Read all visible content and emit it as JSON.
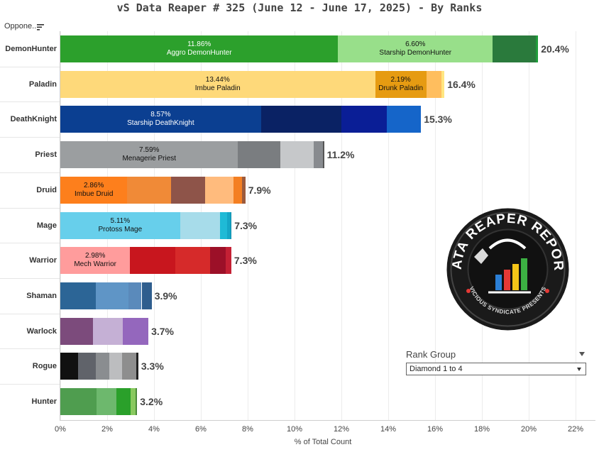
{
  "title": "vS Data Reaper #  325 (June 12 - June 17, 2025) - By Ranks",
  "row_header": "Oppone..",
  "filter": {
    "title": "Rank Group",
    "value": "Diamond 1 to 4"
  },
  "logo": {
    "text_top": "DATA REAPER REPORT",
    "text_bottom": "VICIOUS SYNDICATE PRESENTS"
  },
  "chart_data": {
    "type": "bar",
    "orientation": "horizontal",
    "stacked": true,
    "xlabel": "% of Total Count",
    "xlim": [
      0,
      22.5
    ],
    "x_ticks": [
      "0%",
      "2%",
      "4%",
      "6%",
      "8%",
      "10%",
      "12%",
      "14%",
      "16%",
      "18%",
      "20%",
      "22%"
    ],
    "grid": true,
    "rows": [
      {
        "class": "DemonHunter",
        "total_label": "20.4%",
        "segments": [
          {
            "value": 11.86,
            "pct_label": "11.86%",
            "archetype": "Aggro DemonHunter",
            "color": "#2ca02c",
            "text_color": "#ffffff"
          },
          {
            "value": 6.6,
            "pct_label": "6.60%",
            "archetype": "Starship DemonHunter",
            "color": "#98df8a",
            "text_color": "#111111"
          },
          {
            "value": 1.85,
            "color": "#2a7a3c"
          },
          {
            "value": 0.09,
            "color": "#1f9d3b"
          }
        ]
      },
      {
        "class": "Paladin",
        "total_label": "16.4%",
        "segments": [
          {
            "value": 13.44,
            "pct_label": "13.44%",
            "archetype": "Imbue Paladin",
            "color": "#fed97a",
            "text_color": "#111111"
          },
          {
            "value": 2.19,
            "pct_label": "2.19%",
            "archetype": "Drunk Paladin",
            "color": "#e69b12",
            "text_color": "#111111"
          },
          {
            "value": 0.65,
            "color": "#ffbe5e"
          },
          {
            "value": 0.12,
            "color": "#ffe680"
          }
        ]
      },
      {
        "class": "DeathKnight",
        "total_label": "15.3%",
        "segments": [
          {
            "value": 8.57,
            "pct_label": "8.57%",
            "archetype": "Starship DeathKnight",
            "color": "#0b3f91",
            "text_color": "#ffffff"
          },
          {
            "value": 3.43,
            "color": "#0a2264"
          },
          {
            "value": 1.93,
            "color": "#0a1e96"
          },
          {
            "value": 1.47,
            "color": "#1565c9"
          }
        ]
      },
      {
        "class": "Priest",
        "total_label": "11.2%",
        "segments": [
          {
            "value": 7.59,
            "pct_label": "7.59%",
            "archetype": "Menagerie Priest",
            "color": "#9b9ea0",
            "text_color": "#111111"
          },
          {
            "value": 1.8,
            "color": "#7a7d80"
          },
          {
            "value": 1.42,
            "color": "#c6c8ca"
          },
          {
            "value": 0.39,
            "color": "#888b8f"
          },
          {
            "value": 0.06,
            "color": "#555555"
          }
        ]
      },
      {
        "class": "Druid",
        "total_label": "7.9%",
        "segments": [
          {
            "value": 2.86,
            "pct_label": "2.86%",
            "archetype": "Imbue Druid",
            "color": "#fd7f1c",
            "text_color": "#111111"
          },
          {
            "value": 1.87,
            "color": "#f08a37"
          },
          {
            "value": 1.45,
            "color": "#8e5449"
          },
          {
            "value": 1.22,
            "color": "#ffbb7d"
          },
          {
            "value": 0.36,
            "color": "#f47f22"
          },
          {
            "value": 0.14,
            "color": "#9c5a3c"
          }
        ]
      },
      {
        "class": "Mage",
        "total_label": "7.3%",
        "segments": [
          {
            "value": 5.11,
            "pct_label": "5.11%",
            "archetype": "Protoss Mage",
            "color": "#67cfeb",
            "text_color": "#111111"
          },
          {
            "value": 1.7,
            "color": "#a7dcea"
          },
          {
            "value": 0.3,
            "color": "#1fbad6"
          },
          {
            "value": 0.15,
            "color": "#15a6c6"
          },
          {
            "value": 0.05,
            "color": "#0d8aa8"
          }
        ]
      },
      {
        "class": "Warrior",
        "total_label": "7.3%",
        "segments": [
          {
            "value": 2.98,
            "pct_label": "2.98%",
            "archetype": "Mech Warrior",
            "color": "#ff9c9c",
            "text_color": "#111111"
          },
          {
            "value": 1.94,
            "color": "#c8161e"
          },
          {
            "value": 1.48,
            "color": "#d62a2a"
          },
          {
            "value": 0.66,
            "color": "#9c1028"
          },
          {
            "value": 0.24,
            "color": "#c42034"
          }
        ]
      },
      {
        "class": "Shaman",
        "total_label": "3.9%",
        "segments": [
          {
            "value": 1.52,
            "color": "#2c6596"
          },
          {
            "value": 1.38,
            "color": "#5f95c6"
          },
          {
            "value": 0.57,
            "color": "#5a8abb"
          },
          {
            "value": 0.43,
            "color": "#2f5e8e"
          }
        ]
      },
      {
        "class": "Warlock",
        "total_label": "3.7%",
        "segments": [
          {
            "value": 1.4,
            "color": "#7c4b7c"
          },
          {
            "value": 1.26,
            "color": "#c5b0d5"
          },
          {
            "value": 1.1,
            "color": "#9467bd"
          }
        ]
      },
      {
        "class": "Rogue",
        "total_label": "3.3%",
        "segments": [
          {
            "value": 0.75,
            "color": "#111111"
          },
          {
            "value": 0.75,
            "color": "#60636a"
          },
          {
            "value": 0.6,
            "color": "#8a8d90"
          },
          {
            "value": 0.55,
            "color": "#bcbdbf"
          },
          {
            "value": 0.6,
            "color": "#8e8e8e"
          },
          {
            "value": 0.08,
            "color": "#222222"
          }
        ]
      },
      {
        "class": "Hunter",
        "total_label": "3.2%",
        "segments": [
          {
            "value": 1.55,
            "color": "#4f9d4f"
          },
          {
            "value": 0.85,
            "color": "#6db86d"
          },
          {
            "value": 0.6,
            "color": "#2aa02a"
          },
          {
            "value": 0.2,
            "color": "#89c95f"
          },
          {
            "value": 0.08,
            "color": "#4a8a3a"
          }
        ]
      }
    ]
  }
}
